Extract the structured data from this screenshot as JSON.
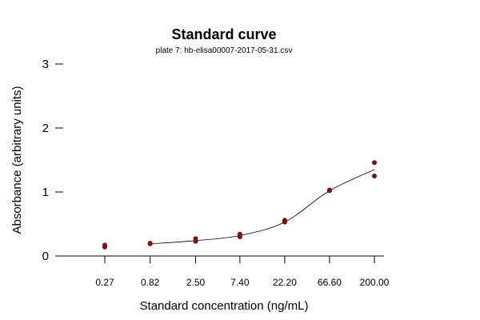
{
  "chart_data": {
    "type": "scatter",
    "title": "Standard curve",
    "subtitle": "plate 7: hb-elisa00007-2017-05-31.csv",
    "xlabel": "Standard concentration (ng/mL)",
    "ylabel": "Absorbance (arbitrary units)",
    "x_scale": "log",
    "ylim": [
      0,
      3
    ],
    "yticks": [
      0,
      1,
      2,
      3
    ],
    "grid": false,
    "x_categories": [
      "0.27",
      "0.82",
      "2.50",
      "7.40",
      "22.20",
      "66.60",
      "200.00"
    ],
    "x_values": [
      0.27,
      0.82,
      2.5,
      7.4,
      22.2,
      66.6,
      200.0
    ],
    "points": [
      {
        "x": 0.27,
        "y": 0.17
      },
      {
        "x": 0.27,
        "y": 0.14
      },
      {
        "x": 0.82,
        "y": 0.2
      },
      {
        "x": 0.82,
        "y": 0.19
      },
      {
        "x": 2.5,
        "y": 0.27
      },
      {
        "x": 2.5,
        "y": 0.23
      },
      {
        "x": 7.4,
        "y": 0.34
      },
      {
        "x": 7.4,
        "y": 0.3
      },
      {
        "x": 22.2,
        "y": 0.56
      },
      {
        "x": 22.2,
        "y": 0.53
      },
      {
        "x": 66.6,
        "y": 1.03
      },
      {
        "x": 66.6,
        "y": 1.02
      },
      {
        "x": 200.0,
        "y": 1.46
      },
      {
        "x": 200.0,
        "y": 1.25
      }
    ],
    "fit_curve": [
      {
        "x": 0.82,
        "y": 0.19
      },
      {
        "x": 2.5,
        "y": 0.24
      },
      {
        "x": 7.4,
        "y": 0.32
      },
      {
        "x": 22.2,
        "y": 0.53
      },
      {
        "x": 66.6,
        "y": 1.02
      },
      {
        "x": 200.0,
        "y": 1.35
      }
    ],
    "colors": {
      "points": "#8b0a0a",
      "curve": "#000000"
    }
  }
}
